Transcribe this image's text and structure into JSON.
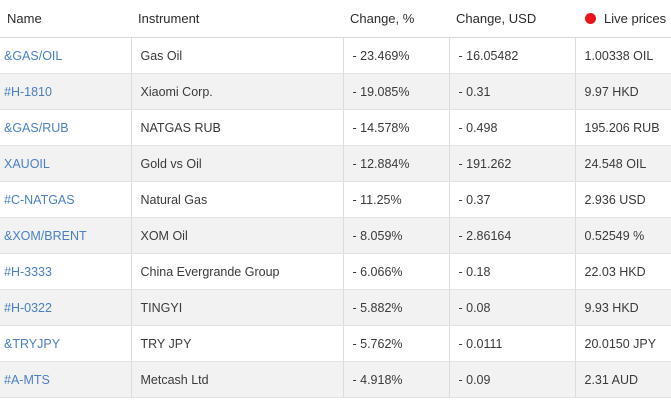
{
  "header": {
    "name": "Name",
    "instrument": "Instrument",
    "change_pct": "Change, %",
    "change_usd": "Change, USD",
    "live": "Live prices"
  },
  "colors": {
    "link": "#4a7fc4",
    "live_dot": "#e8141c",
    "row_alt": "#f2f2f2"
  },
  "rows": [
    {
      "symbol": "&GAS/OIL",
      "instrument": "Gas Oil",
      "change_pct": "- 23.469%",
      "change_usd": "- 16.05482",
      "price": "1.00338 OIL"
    },
    {
      "symbol": "#H-1810",
      "instrument": "Xiaomi Corp.",
      "change_pct": "- 19.085%",
      "change_usd": "- 0.31",
      "price": "9.97 HKD"
    },
    {
      "symbol": "&GAS/RUB",
      "instrument": "NATGAS RUB",
      "change_pct": "- 14.578%",
      "change_usd": "- 0.498",
      "price": "195.206 RUB"
    },
    {
      "symbol": "XAUOIL",
      "instrument": "Gold vs Oil",
      "change_pct": "- 12.884%",
      "change_usd": "- 191.262",
      "price": "24.548 OIL"
    },
    {
      "symbol": "#C-NATGAS",
      "instrument": "Natural Gas",
      "change_pct": "- 11.25%",
      "change_usd": "- 0.37",
      "price": "2.936 USD"
    },
    {
      "symbol": "&XOM/BRENT",
      "instrument": "XOM Oil",
      "change_pct": "- 8.059%",
      "change_usd": "- 2.86164",
      "price": "0.52549 %"
    },
    {
      "symbol": "#H-3333",
      "instrument": "China Evergrande Group",
      "change_pct": "- 6.066%",
      "change_usd": "- 0.18",
      "price": "22.03 HKD"
    },
    {
      "symbol": "#H-0322",
      "instrument": "TINGYI",
      "change_pct": "- 5.882%",
      "change_usd": "- 0.08",
      "price": "9.93 HKD"
    },
    {
      "symbol": "&TRYJPY",
      "instrument": "TRY JPY",
      "change_pct": "- 5.762%",
      "change_usd": "- 0.0111",
      "price": "20.0150 JPY"
    },
    {
      "symbol": "#A-MTS",
      "instrument": "Metcash Ltd",
      "change_pct": "- 4.918%",
      "change_usd": "- 0.09",
      "price": "2.31 AUD"
    }
  ]
}
